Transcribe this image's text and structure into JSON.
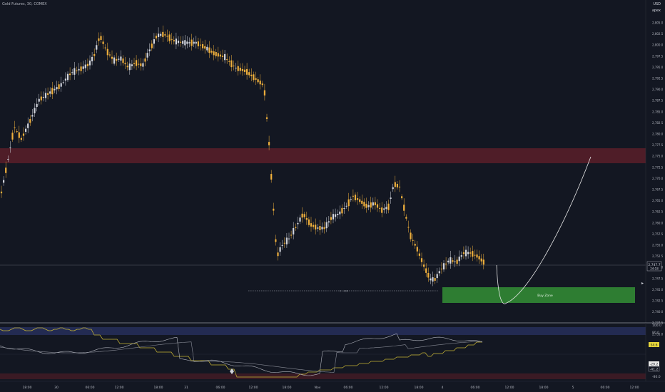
{
  "header": {
    "symbol_info": "Gold Futures, 30, COMEX"
  },
  "price_axis": {
    "currency": "USD",
    "mode": "apex",
    "labels": [
      "2,805.0",
      "2,802.5",
      "2,800.0",
      "2,797.5",
      "2,795.0",
      "2,792.5",
      "2,790.0",
      "2,787.5",
      "2,785.0",
      "2,782.5",
      "2,780.0",
      "2,777.5",
      "2,775.0",
      "2,772.5",
      "2,770.0",
      "2,767.5",
      "2,765.0",
      "2,762.5",
      "2,760.0",
      "2,757.5",
      "2,755.0",
      "2,752.5",
      "2,750.0",
      "2,747.5",
      "2,745.0",
      "2,742.5",
      "2,740.0",
      "2,737.5",
      "2,735.0"
    ],
    "current_price": "2,747.7",
    "countdown": "24:18"
  },
  "time_axis": {
    "labels": [
      "18:00",
      "30",
      "06:00",
      "12:00",
      "18:00",
      "31",
      "06:00",
      "12:00",
      "18:00",
      "Nov",
      "06:00",
      "12:00",
      "18:00",
      "4",
      "06:00",
      "12:00",
      "18:00",
      "5",
      "06:00",
      "12:00"
    ]
  },
  "annotations": {
    "buy_zone_label": "Buy Zone",
    "low_marker": "2 · 400"
  },
  "oscillator": {
    "labels": [
      "100.0",
      "80.0",
      "",
      "-80.0"
    ],
    "tags": [
      "54.6",
      "-29.2",
      "-41.2"
    ]
  },
  "colors": {
    "background": "#131722",
    "bull_candle": "#d1d4dc",
    "bear_candle": "#f0b03c",
    "resistance_zone": "#5a1e29",
    "buy_zone": "#2e7d32",
    "osc_top_band": "#232b52",
    "osc_bottom_band": "#3a1a24"
  }
}
